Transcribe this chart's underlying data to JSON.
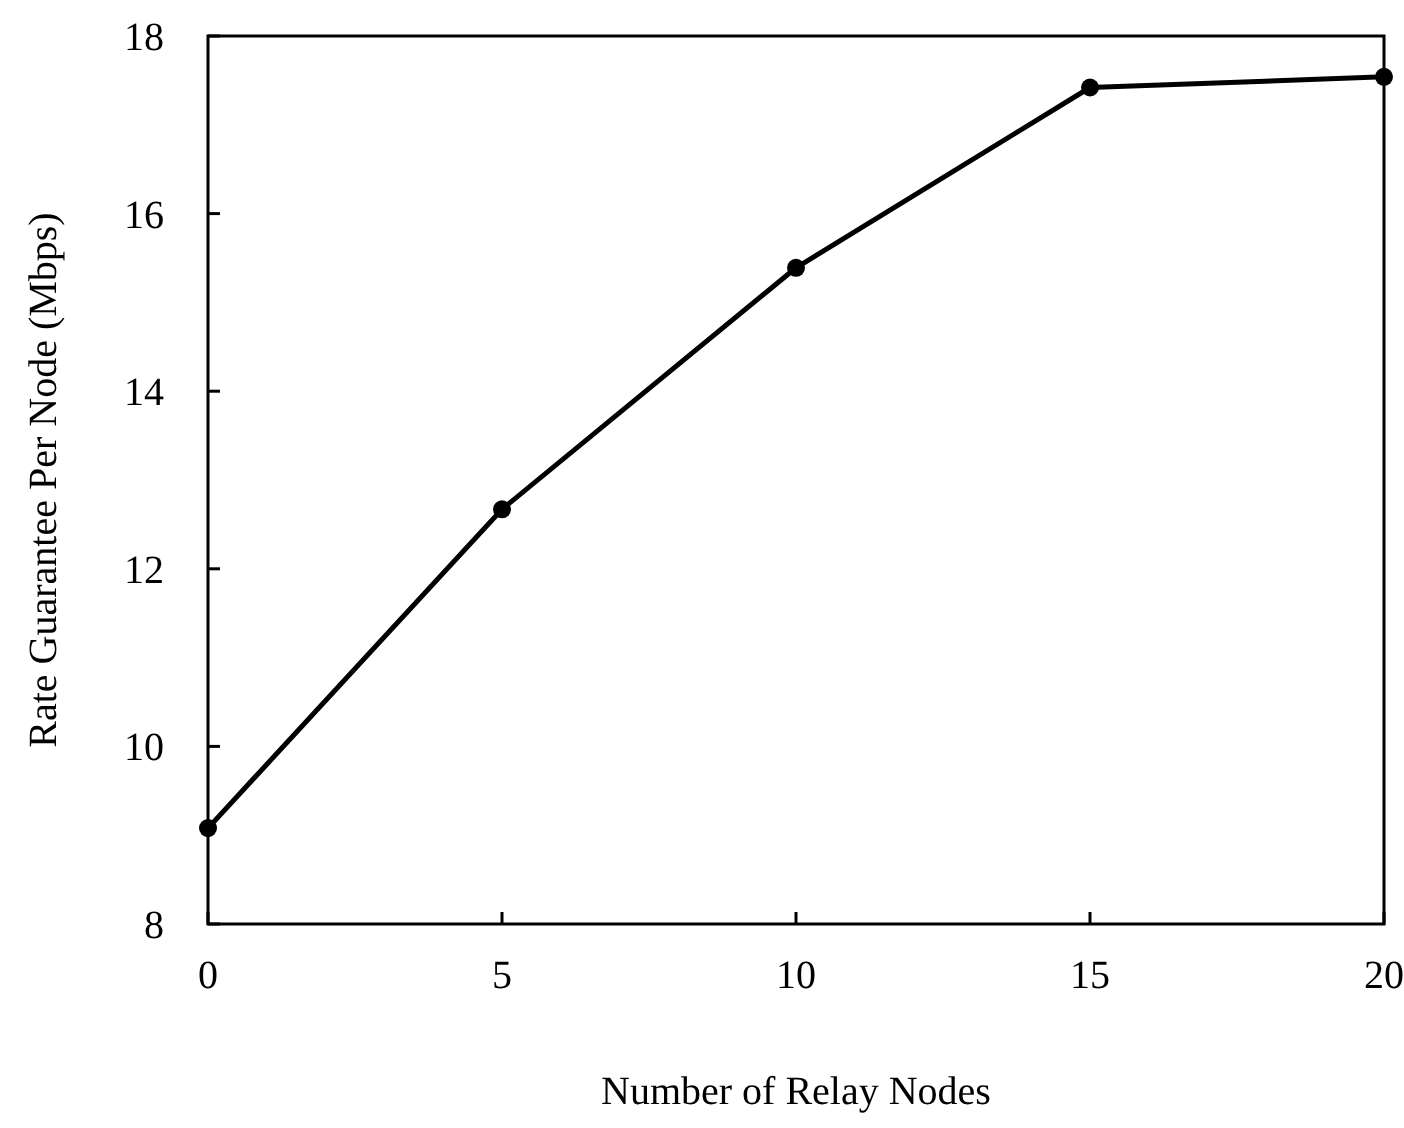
{
  "chart_data": {
    "type": "line",
    "xlabel": "Number of Relay Nodes",
    "ylabel": "Rate Guarantee Per Node (Mbps)",
    "x": [
      0,
      5,
      10,
      15,
      20
    ],
    "series": [
      {
        "color": "#000000",
        "values": [
          9.08,
          12.67,
          15.39,
          17.42,
          17.54
        ]
      }
    ],
    "xlim": [
      0,
      20
    ],
    "xticks": [
      0,
      5,
      10,
      15,
      20
    ],
    "ylim": [
      8,
      18
    ],
    "yticks": [
      8,
      10,
      12,
      14,
      16,
      18
    ],
    "marker": "circle",
    "line_style": "solid",
    "grid": false
  }
}
